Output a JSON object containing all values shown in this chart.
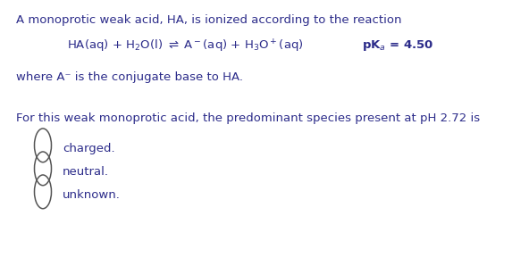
{
  "bg_color": "#ffffff",
  "text_color": "#2c2c8a",
  "circle_color": "#555555",
  "line1": "A monoprotic weak acid, HA, is ionized according to the reaction",
  "where_line": "where A⁻ is the conjugate base to HA.",
  "question_line": "For this weak monoprotic acid, the predominant species present at pH 2.72 is",
  "option1": "charged.",
  "option2": "neutral.",
  "option3": "unknown.",
  "fig_width": 5.92,
  "fig_height": 2.98,
  "dpi": 100,
  "fontsize": 9.5,
  "eq_fontsize": 9.5
}
